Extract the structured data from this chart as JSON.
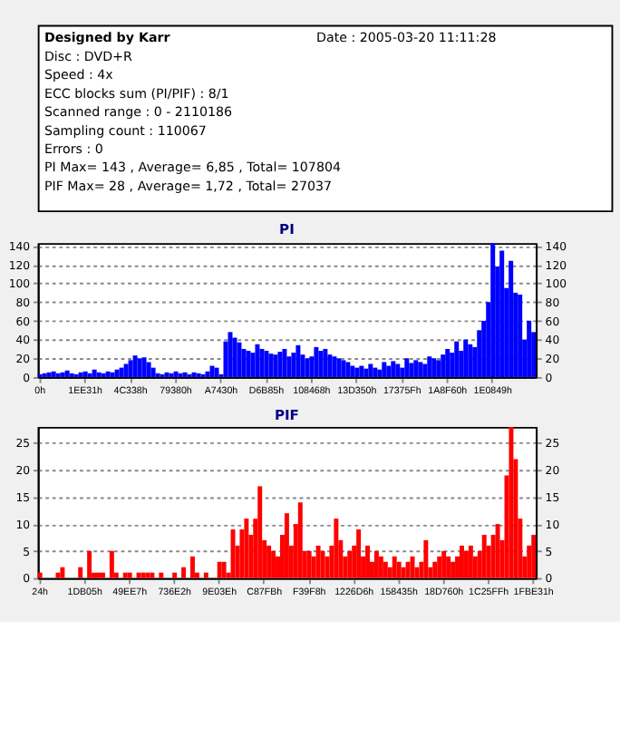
{
  "chart_data": [
    {
      "type": "other",
      "annotations": [
        "Designed by Karr",
        "Date : 2005-03-20 11:11:28",
        "Disc : DVD+R",
        "Speed : 4x",
        "ECC blocks sum (PI/PIF) : 8/1",
        "Scanned range : 0 - 2110186",
        "Sampling count : 110067",
        "Errors : 0",
        "PI Max= 143 , Average= 6,85 , Total= 107804",
        "PIF Max= 28 , Average= 1,72 , Total= 27037"
      ]
    },
    {
      "type": "bar",
      "title": "PI",
      "categories": [
        "0h",
        null,
        null,
        null,
        null,
        null,
        null,
        null,
        null,
        null,
        "1EE31h",
        null,
        null,
        null,
        null,
        null,
        null,
        null,
        null,
        null,
        "4C338h",
        null,
        null,
        null,
        null,
        null,
        null,
        null,
        null,
        null,
        "79380h",
        null,
        null,
        null,
        null,
        null,
        null,
        null,
        null,
        null,
        "A7430h",
        null,
        null,
        null,
        null,
        null,
        null,
        null,
        null,
        null,
        "D6B85h",
        null,
        null,
        null,
        null,
        null,
        null,
        null,
        null,
        null,
        "108468h",
        null,
        null,
        null,
        null,
        null,
        null,
        null,
        null,
        null,
        "13D350h",
        null,
        null,
        null,
        null,
        null,
        null,
        null,
        null,
        null,
        "17375Fh",
        null,
        null,
        null,
        null,
        null,
        null,
        null,
        null,
        null,
        "1A8F60h",
        null,
        null,
        null,
        null,
        null,
        null,
        null,
        null,
        null,
        "1E0849h",
        null,
        null,
        null,
        null,
        null,
        null,
        null,
        null,
        null
      ],
      "values": [
        3,
        4,
        5,
        6,
        4,
        5,
        7,
        4,
        3,
        5,
        6,
        4,
        8,
        5,
        4,
        6,
        5,
        8,
        10,
        14,
        18,
        23,
        20,
        21,
        16,
        10,
        4,
        3,
        5,
        4,
        6,
        4,
        5,
        3,
        5,
        4,
        3,
        6,
        12,
        10,
        3,
        38,
        48,
        42,
        37,
        30,
        28,
        26,
        35,
        30,
        28,
        25,
        24,
        27,
        30,
        22,
        26,
        34,
        24,
        20,
        22,
        32,
        28,
        30,
        24,
        22,
        20,
        18,
        16,
        12,
        10,
        12,
        9,
        14,
        10,
        8,
        16,
        12,
        17,
        14,
        10,
        20,
        15,
        18,
        16,
        14,
        22,
        20,
        18,
        24,
        30,
        26,
        38,
        28,
        40,
        35,
        32,
        50,
        60,
        80,
        143,
        118,
        135,
        95,
        124,
        90,
        88,
        40,
        60,
        48
      ],
      "color": "#0000ff",
      "ylim": [
        0,
        143
      ],
      "yticks": [
        0,
        20,
        40,
        60,
        80,
        100,
        120,
        140
      ],
      "y2lim": [
        0,
        143
      ],
      "y2ticks": [
        0,
        20,
        40,
        60,
        80,
        100,
        120,
        140
      ],
      "grid": "y"
    },
    {
      "type": "bar",
      "title": "PIF",
      "categories": [
        "24h",
        null,
        null,
        null,
        null,
        null,
        null,
        null,
        null,
        null,
        "1DB05h",
        null,
        null,
        null,
        null,
        null,
        null,
        null,
        null,
        null,
        "49EE7h",
        null,
        null,
        null,
        null,
        null,
        null,
        null,
        null,
        null,
        "736E2h",
        null,
        null,
        null,
        null,
        null,
        null,
        null,
        null,
        null,
        "9E03Eh",
        null,
        null,
        null,
        null,
        null,
        null,
        null,
        null,
        null,
        "C87FBh",
        null,
        null,
        null,
        null,
        null,
        null,
        null,
        null,
        null,
        "F39F8h",
        null,
        null,
        null,
        null,
        null,
        null,
        null,
        null,
        null,
        "1226D6h",
        null,
        null,
        null,
        null,
        null,
        null,
        null,
        null,
        null,
        "158435h",
        null,
        null,
        null,
        null,
        null,
        null,
        null,
        null,
        null,
        "18D760h",
        null,
        null,
        null,
        null,
        null,
        null,
        null,
        null,
        null,
        "1C25FFh",
        null,
        null,
        null,
        null,
        null,
        null,
        null,
        null,
        null,
        "1FBE31h"
      ],
      "values": [
        1,
        0,
        0,
        0,
        1,
        2,
        0,
        0,
        0,
        2,
        0,
        5,
        1,
        1,
        1,
        0,
        5,
        1,
        0,
        1,
        1,
        0,
        1,
        1,
        1,
        1,
        0,
        1,
        0,
        0,
        1,
        0,
        2,
        0,
        4,
        1,
        0,
        1,
        0,
        0,
        3,
        3,
        1,
        9,
        6,
        9,
        11,
        8,
        11,
        17,
        7,
        6,
        5,
        4,
        8,
        12,
        6,
        10,
        14,
        5,
        5,
        4,
        6,
        5,
        4,
        6,
        11,
        7,
        4,
        5,
        6,
        9,
        4,
        6,
        3,
        5,
        4,
        3,
        2,
        4,
        3,
        2,
        3,
        4,
        2,
        3,
        7,
        2,
        3,
        4,
        5,
        4,
        3,
        4,
        6,
        5,
        6,
        4,
        5,
        8,
        6,
        8,
        10,
        7,
        19,
        28,
        22,
        11,
        4,
        6,
        8
      ],
      "color": "#ff0000",
      "ylim": [
        0,
        28
      ],
      "yticks": [
        0,
        5,
        10,
        15,
        20,
        25
      ],
      "y2lim": [
        0,
        28
      ],
      "y2ticks": [
        0,
        5,
        10,
        15,
        20,
        25
      ],
      "grid": "y"
    }
  ]
}
